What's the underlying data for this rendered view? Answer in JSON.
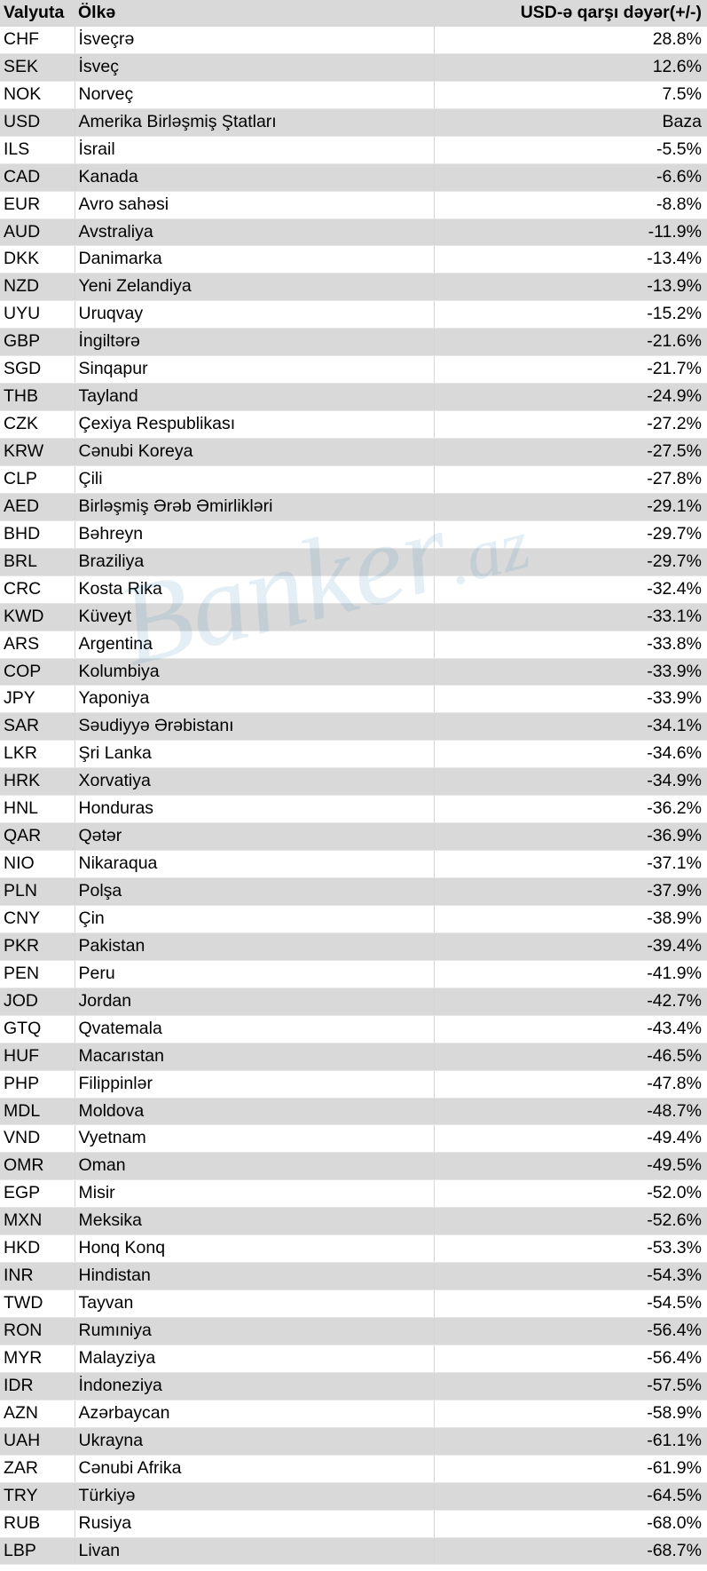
{
  "header": {
    "currency": "Valyuta",
    "country": "Ölkə",
    "value": "USD-ə qarşı dəyər(+/-)"
  },
  "watermark": {
    "main": "Banker",
    "suffix": ".az"
  },
  "rows": [
    {
      "code": "CHF",
      "country": "İsveçrə",
      "value": "28.8%"
    },
    {
      "code": "SEK",
      "country": "İsveç",
      "value": "12.6%"
    },
    {
      "code": "NOK",
      "country": "Norveç",
      "value": "7.5%"
    },
    {
      "code": "USD",
      "country": "Amerika Birləşmiş Ştatları",
      "value": "Baza"
    },
    {
      "code": "ILS",
      "country": "İsrail",
      "value": "-5.5%"
    },
    {
      "code": "CAD",
      "country": "Kanada",
      "value": "-6.6%"
    },
    {
      "code": "EUR",
      "country": "Avro sahəsi",
      "value": "-8.8%"
    },
    {
      "code": "AUD",
      "country": "Avstraliya",
      "value": "-11.9%"
    },
    {
      "code": "DKK",
      "country": "Danimarka",
      "value": "-13.4%"
    },
    {
      "code": "NZD",
      "country": "Yeni Zelandiya",
      "value": "-13.9%"
    },
    {
      "code": "UYU",
      "country": "Uruqvay",
      "value": "-15.2%"
    },
    {
      "code": "GBP",
      "country": "İngiltərə",
      "value": "-21.6%"
    },
    {
      "code": "SGD",
      "country": "Sinqapur",
      "value": "-21.7%"
    },
    {
      "code": "THB",
      "country": "Tayland",
      "value": "-24.9%"
    },
    {
      "code": "CZK",
      "country": "Çexiya Respublikası",
      "value": "-27.2%"
    },
    {
      "code": "KRW",
      "country": "Cənubi Koreya",
      "value": "-27.5%"
    },
    {
      "code": "CLP",
      "country": "Çili",
      "value": "-27.8%"
    },
    {
      "code": "AED",
      "country": "Birləşmiş Ərəb Əmirlikləri",
      "value": "-29.1%"
    },
    {
      "code": "BHD",
      "country": "Bəhreyn",
      "value": "-29.7%"
    },
    {
      "code": "BRL",
      "country": "Braziliya",
      "value": "-29.7%"
    },
    {
      "code": "CRC",
      "country": "Kosta Rika",
      "value": "-32.4%"
    },
    {
      "code": "KWD",
      "country": "Küveyt",
      "value": "-33.1%"
    },
    {
      "code": "ARS",
      "country": "Argentina",
      "value": "-33.8%"
    },
    {
      "code": "COP",
      "country": "Kolumbiya",
      "value": "-33.9%"
    },
    {
      "code": "JPY",
      "country": "Yaponiya",
      "value": "-33.9%"
    },
    {
      "code": "SAR",
      "country": "Səudiyyə Ərəbistanı",
      "value": "-34.1%"
    },
    {
      "code": "LKR",
      "country": "Şri Lanka",
      "value": "-34.6%"
    },
    {
      "code": "HRK",
      "country": "Xorvatiya",
      "value": "-34.9%"
    },
    {
      "code": "HNL",
      "country": "Honduras",
      "value": "-36.2%"
    },
    {
      "code": "QAR",
      "country": "Qətər",
      "value": "-36.9%"
    },
    {
      "code": "NIO",
      "country": "Nikaraqua",
      "value": "-37.1%"
    },
    {
      "code": "PLN",
      "country": "Polşa",
      "value": "-37.9%"
    },
    {
      "code": "CNY",
      "country": "Çin",
      "value": "-38.9%"
    },
    {
      "code": "PKR",
      "country": "Pakistan",
      "value": "-39.4%"
    },
    {
      "code": "PEN",
      "country": "Peru",
      "value": "-41.9%"
    },
    {
      "code": "JOD",
      "country": "Jordan",
      "value": "-42.7%"
    },
    {
      "code": "GTQ",
      "country": "Qvatemala",
      "value": "-43.4%"
    },
    {
      "code": "HUF",
      "country": "Macarıstan",
      "value": "-46.5%"
    },
    {
      "code": "PHP",
      "country": "Filippinlər",
      "value": "-47.8%"
    },
    {
      "code": "MDL",
      "country": "Moldova",
      "value": "-48.7%"
    },
    {
      "code": "VND",
      "country": "Vyetnam",
      "value": "-49.4%"
    },
    {
      "code": "OMR",
      "country": "Oman",
      "value": "-49.5%"
    },
    {
      "code": "EGP",
      "country": "Misir",
      "value": "-52.0%"
    },
    {
      "code": "MXN",
      "country": "Meksika",
      "value": "-52.6%"
    },
    {
      "code": "HKD",
      "country": "Honq Konq",
      "value": "-53.3%"
    },
    {
      "code": "INR",
      "country": "Hindistan",
      "value": "-54.3%"
    },
    {
      "code": "TWD",
      "country": "Tayvan",
      "value": "-54.5%"
    },
    {
      "code": "RON",
      "country": "Rumıniya",
      "value": "-56.4%"
    },
    {
      "code": "MYR",
      "country": "Malayziya",
      "value": "-56.4%"
    },
    {
      "code": "IDR",
      "country": "İndoneziya",
      "value": "-57.5%"
    },
    {
      "code": "AZN",
      "country": "Azərbaycan",
      "value": "-58.9%"
    },
    {
      "code": "UAH",
      "country": "Ukrayna",
      "value": "-61.1%"
    },
    {
      "code": "ZAR",
      "country": "Cənubi Afrika",
      "value": "-61.9%"
    },
    {
      "code": "TRY",
      "country": "Türkiyə",
      "value": "-64.5%"
    },
    {
      "code": "RUB",
      "country": "Rusiya",
      "value": "-68.0%"
    },
    {
      "code": "LBP",
      "country": "Livan",
      "value": "-68.7%"
    }
  ]
}
